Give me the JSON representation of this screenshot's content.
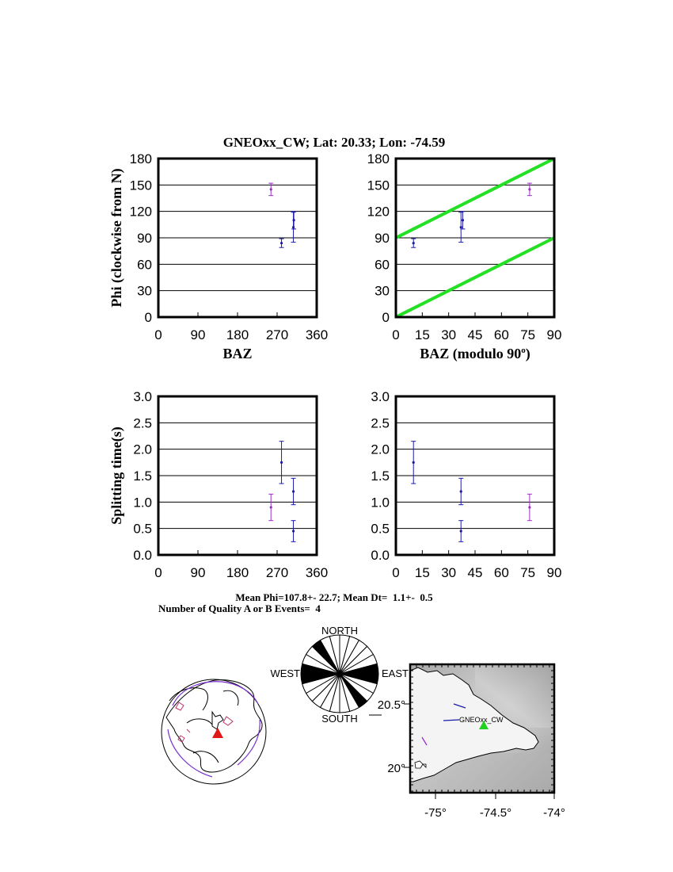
{
  "title": "GNEOxx_CW; Lat:  20.33;  Lon:  -74.59",
  "colors": {
    "blue": "#1a1aa8",
    "purple": "#9a2fc8",
    "green": "#22e022",
    "black": "#000000"
  },
  "chart_data": [
    {
      "type": "scatter",
      "panel": "phi-vs-baz",
      "ylabel": "Phi (clockwise from N)",
      "xlabel": "BAZ",
      "xlim": [
        0,
        360
      ],
      "ylim": [
        0,
        180
      ],
      "xticks": [
        0,
        90,
        180,
        270,
        360
      ],
      "yticks": [
        0,
        30,
        60,
        90,
        120,
        150,
        180
      ],
      "grid": "horizontal",
      "points": [
        {
          "x": 256,
          "y": 145,
          "err": 7,
          "color": "purple"
        },
        {
          "x": 280,
          "y": 84,
          "err": 5,
          "color": "blue"
        },
        {
          "x": 307,
          "y": 102,
          "err": 17,
          "color": "blue"
        },
        {
          "x": 308,
          "y": 110,
          "err": 10,
          "color": "blue"
        }
      ]
    },
    {
      "type": "scatter",
      "panel": "phi-vs-baz-mod90",
      "xlabel": "BAZ (modulo 90",
      "xlabel_sup": "o",
      "xlabel_end": ")",
      "xlim": [
        0,
        90
      ],
      "ylim": [
        0,
        180
      ],
      "xticks": [
        0,
        15,
        30,
        45,
        60,
        75,
        90
      ],
      "yticks": [
        0,
        30,
        60,
        90,
        120,
        150,
        180
      ],
      "grid": "horizontal",
      "lines": [
        {
          "x": [
            0,
            90
          ],
          "y": [
            0,
            90
          ]
        },
        {
          "x": [
            0,
            90
          ],
          "y": [
            90,
            180
          ]
        }
      ],
      "points": [
        {
          "x": 76,
          "y": 145,
          "err": 7,
          "color": "purple"
        },
        {
          "x": 10,
          "y": 84,
          "err": 5,
          "color": "blue"
        },
        {
          "x": 37,
          "y": 102,
          "err": 17,
          "color": "blue"
        },
        {
          "x": 38,
          "y": 110,
          "err": 10,
          "color": "blue"
        }
      ]
    },
    {
      "type": "scatter",
      "panel": "dt-vs-baz",
      "ylabel": "Splitting time(s)",
      "xlim": [
        0,
        360
      ],
      "ylim": [
        0,
        3
      ],
      "xticks": [
        0,
        90,
        180,
        270,
        360
      ],
      "yticks": [
        "0.0",
        "0.5",
        "1.0",
        "1.5",
        "2.0",
        "2.5",
        "3.0"
      ],
      "grid": "horizontal",
      "points": [
        {
          "x": 256,
          "y": 0.9,
          "err": 0.25,
          "color": "purple"
        },
        {
          "x": 280,
          "y": 1.75,
          "err": 0.4,
          "color": "blue"
        },
        {
          "x": 307,
          "y": 1.2,
          "err": 0.25,
          "color": "blue"
        },
        {
          "x": 307,
          "y": 0.45,
          "err": 0.2,
          "color": "blue"
        }
      ]
    },
    {
      "type": "scatter",
      "panel": "dt-vs-baz-mod90",
      "xlim": [
        0,
        90
      ],
      "ylim": [
        0,
        3
      ],
      "xticks": [
        0,
        15,
        30,
        45,
        60,
        75,
        90
      ],
      "yticks": [
        "0.0",
        "0.5",
        "1.0",
        "1.5",
        "2.0",
        "2.5",
        "3.0"
      ],
      "grid": "horizontal",
      "points": [
        {
          "x": 76,
          "y": 0.9,
          "err": 0.25,
          "color": "purple"
        },
        {
          "x": 10,
          "y": 1.75,
          "err": 0.4,
          "color": "blue"
        },
        {
          "x": 37,
          "y": 1.2,
          "err": 0.25,
          "color": "blue"
        },
        {
          "x": 37,
          "y": 0.45,
          "err": 0.2,
          "color": "blue"
        }
      ]
    }
  ],
  "stats": {
    "line1": "Mean Phi=107.8+- 22.7; Mean Dt=  1.1+-  0.5",
    "line2": "Number of Quality A or B Events=  4"
  },
  "rose": {
    "north": "NORTH",
    "south": "SOUTH",
    "east": "EAST",
    "west": "WEST",
    "sector_deg": 15,
    "filled_sector_starts": [
      75,
      255,
      90,
      270,
      135,
      315
    ]
  },
  "map": {
    "xticks": [
      "-75°",
      "-74.5°",
      "-74°"
    ],
    "yticks": [
      "20.5°",
      "20°"
    ],
    "station": "GNEOxx_CW"
  }
}
